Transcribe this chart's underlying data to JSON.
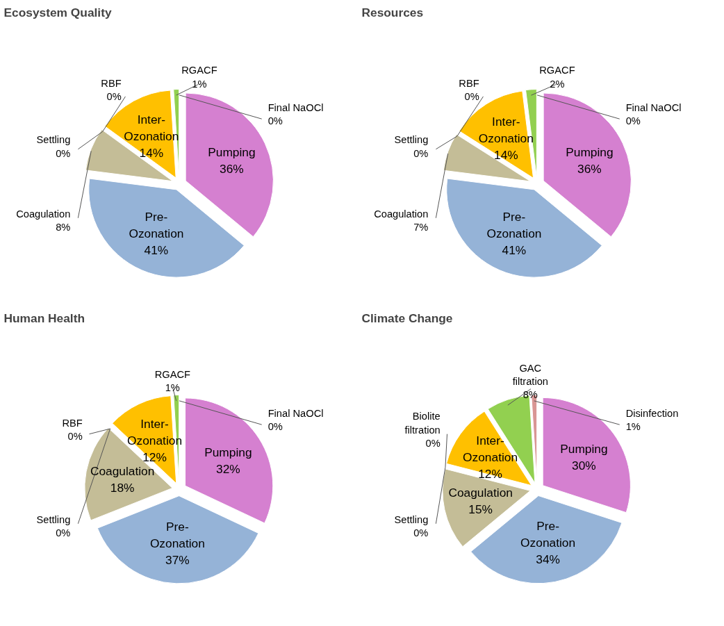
{
  "chart_data": [
    {
      "type": "pie",
      "title": "Ecosystem Quality",
      "categories": [
        "Pumping",
        "Pre-Ozonation",
        "Coagulation",
        "Settling",
        "RBF",
        "Inter-Ozonation",
        "RGACF",
        "Final NaOCl"
      ],
      "values": [
        36,
        41,
        8,
        0,
        0,
        14,
        1,
        0
      ],
      "value_labels": [
        "36%",
        "41%",
        "8%",
        "0%",
        "0%",
        "14%",
        "1%",
        "0%"
      ],
      "colors": [
        "#d580d0",
        "#95b3d7",
        "#c4bd97",
        "#31859c",
        "#4bacc6",
        "#ffc000",
        "#92d050",
        "#d99694"
      ]
    },
    {
      "type": "pie",
      "title": "Resources",
      "categories": [
        "Pumping",
        "Pre-Ozonation",
        "Coagulation",
        "Settling",
        "RBF",
        "Inter-Ozonation",
        "RGACF",
        "Final NaOCl"
      ],
      "values": [
        36,
        41,
        7,
        0,
        0,
        14,
        2,
        0
      ],
      "value_labels": [
        "36%",
        "41%",
        "7%",
        "0%",
        "0%",
        "14%",
        "2%",
        "0%"
      ],
      "colors": [
        "#d580d0",
        "#95b3d7",
        "#c4bd97",
        "#31859c",
        "#4bacc6",
        "#ffc000",
        "#92d050",
        "#d99694"
      ]
    },
    {
      "type": "pie",
      "title": "Human Health",
      "categories": [
        "Pumping",
        "Pre-Ozonation",
        "Coagulation",
        "Settling",
        "RBF",
        "Inter-Ozonation",
        "RGACF",
        "Final NaOCl"
      ],
      "values": [
        32,
        37,
        18,
        0,
        0,
        12,
        1,
        0
      ],
      "value_labels": [
        "32%",
        "37%",
        "18%",
        "0%",
        "0%",
        "12%",
        "1%",
        "0%"
      ],
      "colors": [
        "#d580d0",
        "#95b3d7",
        "#c4bd97",
        "#31859c",
        "#4bacc6",
        "#ffc000",
        "#92d050",
        "#d99694"
      ]
    },
    {
      "type": "pie",
      "title": "Climate Change",
      "categories": [
        "Pumping",
        "Pre-Ozonation",
        "Coagulation",
        "Settling",
        "Biolite filtration",
        "Inter-Ozonation",
        "GAC filtration",
        "Disinfection"
      ],
      "values": [
        30,
        34,
        15,
        0,
        0,
        12,
        8,
        1
      ],
      "value_labels": [
        "30%",
        "34%",
        "15%",
        "0%",
        "0%",
        "12%",
        "8%",
        "1%"
      ],
      "colors": [
        "#d580d0",
        "#95b3d7",
        "#c4bd97",
        "#31859c",
        "#4bacc6",
        "#ffc000",
        "#92d050",
        "#d99694"
      ]
    }
  ]
}
